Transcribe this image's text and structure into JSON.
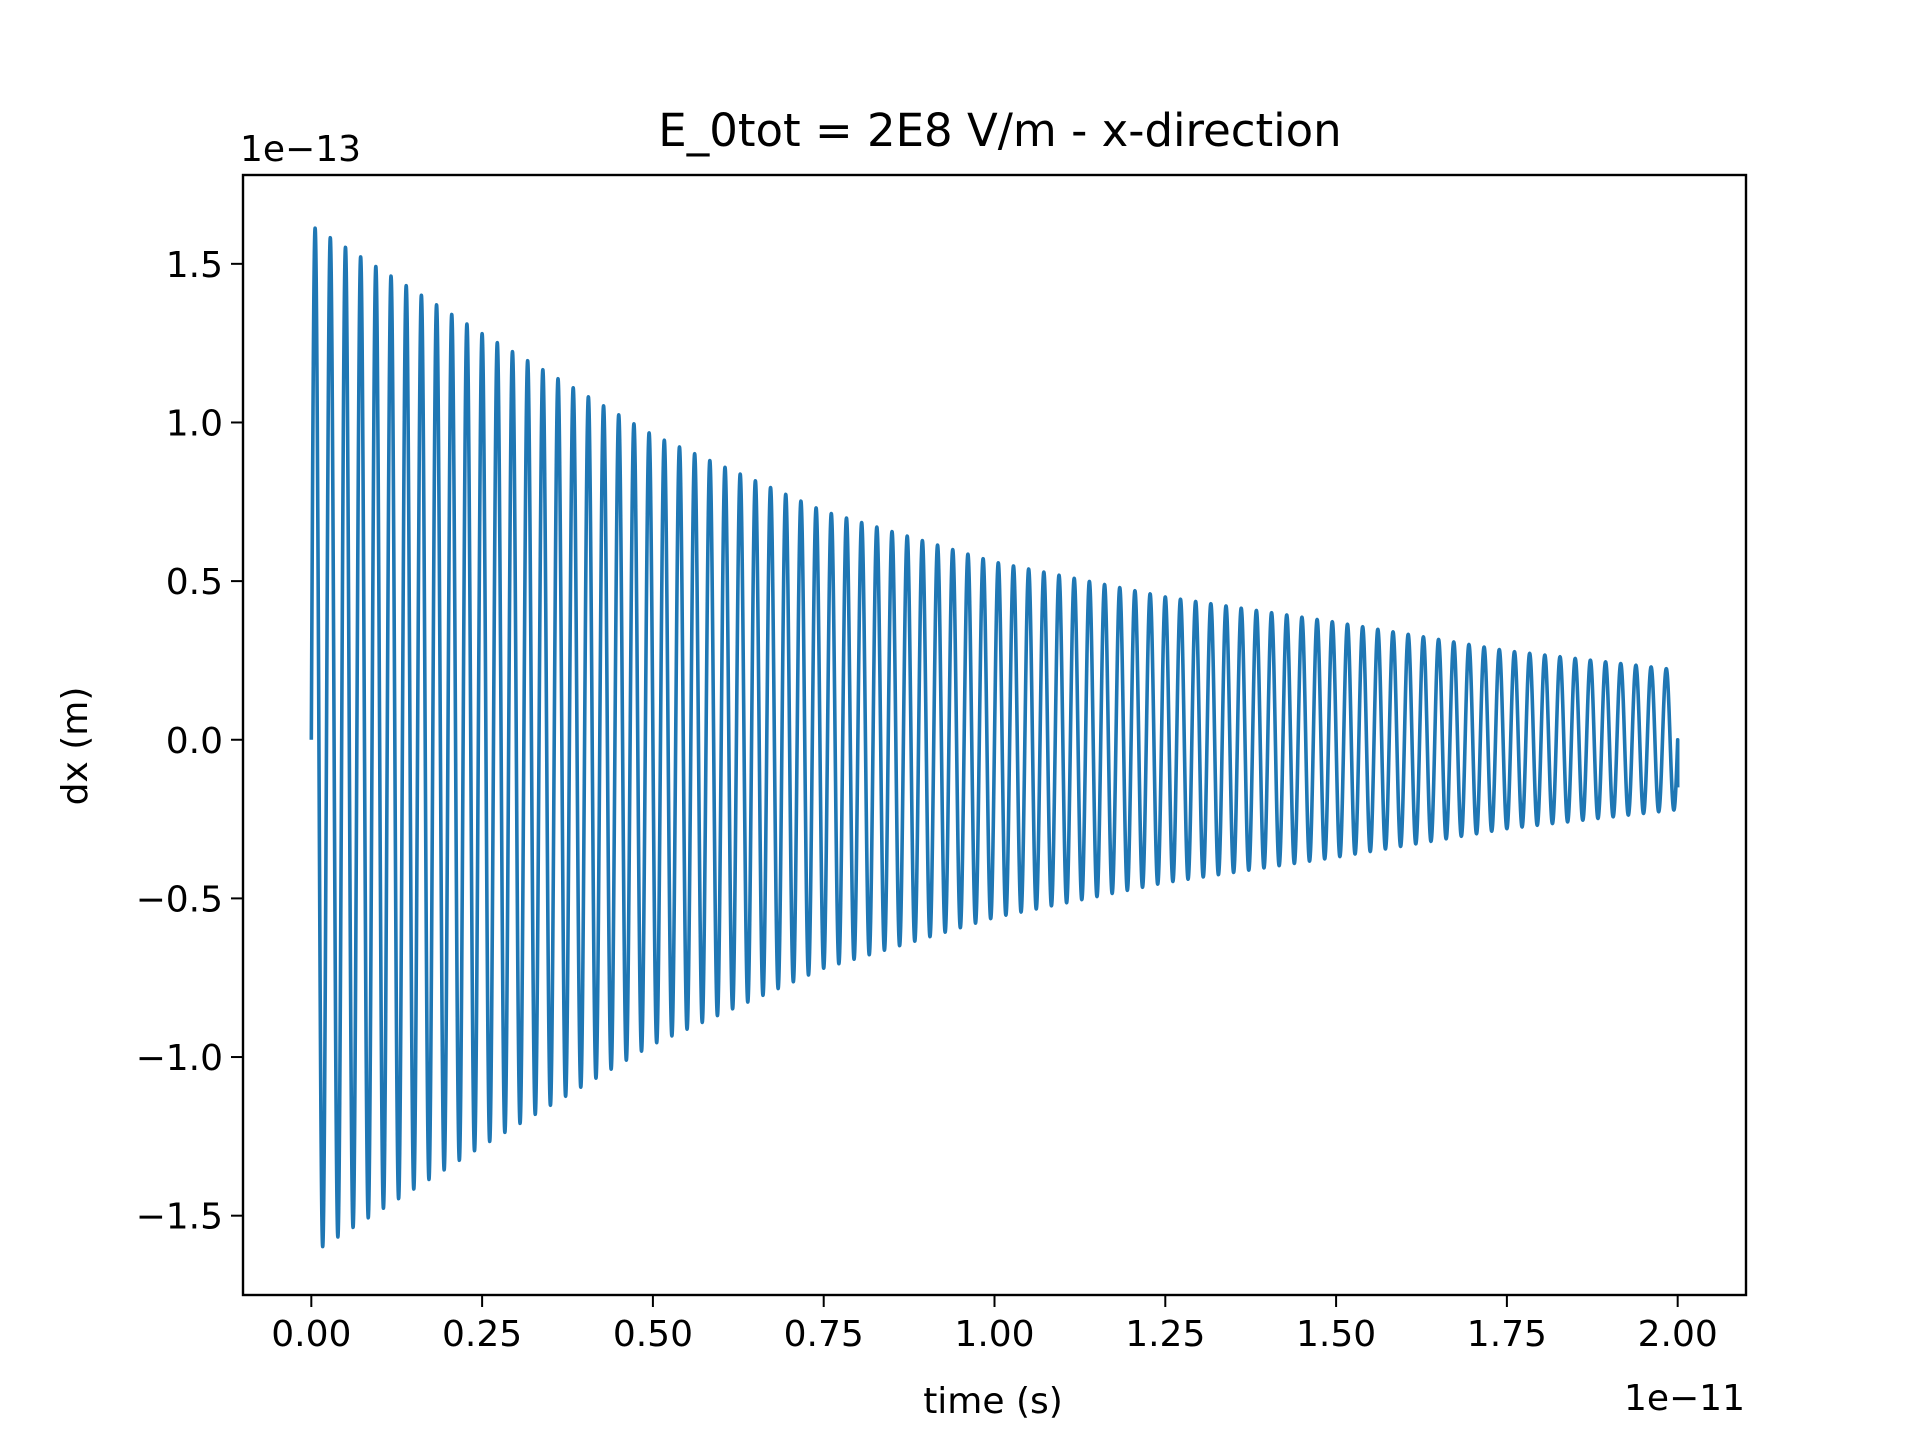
{
  "chart_data": {
    "type": "line",
    "title": "E_0tot = 2E8 V/m - x-direction",
    "xlabel": "time (s)",
    "ylabel": "dx (m)",
    "x_offset_label": "1e−11",
    "y_offset_label": "1e−13",
    "xlim": [
      -0.1,
      2.1
    ],
    "ylim": [
      -1.75,
      1.78
    ],
    "x_ticks": [
      0.0,
      0.25,
      0.5,
      0.75,
      1.0,
      1.25,
      1.5,
      1.75,
      2.0
    ],
    "x_tick_labels": [
      "0.00",
      "0.25",
      "0.50",
      "0.75",
      "1.00",
      "1.25",
      "1.50",
      "1.75",
      "2.00"
    ],
    "y_ticks": [
      -1.5,
      -1.0,
      -0.5,
      0.0,
      0.5,
      1.0,
      1.5
    ],
    "y_tick_labels": [
      "−1.5",
      "−1.0",
      "−0.5",
      "0.0",
      "0.5",
      "1.0",
      "1.5"
    ],
    "grid": false,
    "legend": "none",
    "series": [
      {
        "color": "#1f77b4",
        "kind": "damped_oscillation",
        "x_start": 0.0,
        "x_end": 2.0,
        "y_start": 0.0,
        "y_end": -0.15,
        "cycles": 90,
        "envelope": [
          {
            "x": 0.0,
            "y": 1.62
          },
          {
            "x": 0.25,
            "y": 1.28
          },
          {
            "x": 0.5,
            "y": 0.96
          },
          {
            "x": 0.75,
            "y": 0.72
          },
          {
            "x": 1.0,
            "y": 0.56
          },
          {
            "x": 1.25,
            "y": 0.45
          },
          {
            "x": 1.5,
            "y": 0.37
          },
          {
            "x": 1.75,
            "y": 0.28
          },
          {
            "x": 2.0,
            "y": 0.22
          }
        ]
      }
    ]
  }
}
